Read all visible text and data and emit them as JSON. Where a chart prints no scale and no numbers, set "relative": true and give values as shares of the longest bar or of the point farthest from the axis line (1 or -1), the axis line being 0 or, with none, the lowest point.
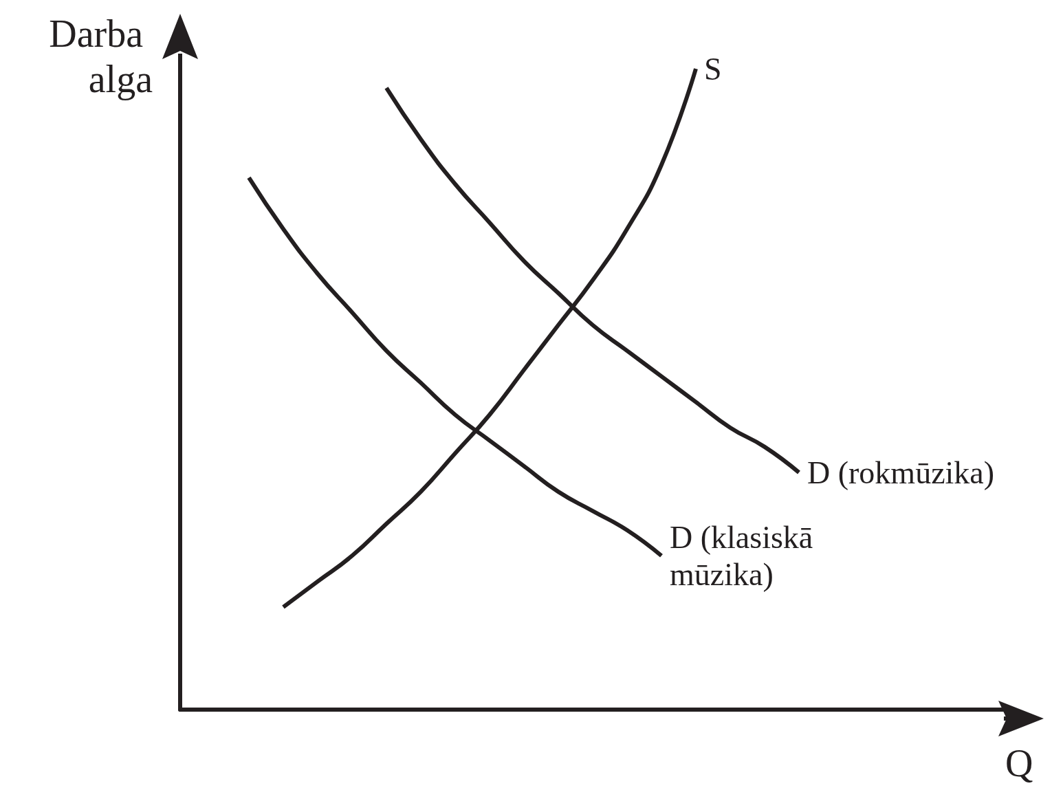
{
  "chart_data": {
    "type": "line",
    "relative": true,
    "xlabel": "Q",
    "ylabel": "Darba alga",
    "marker": "none",
    "line_style": "solid",
    "grid": false,
    "legend": false,
    "tick_labels": false,
    "categories": [
      null,
      null,
      null,
      null,
      null,
      null,
      null,
      null,
      null,
      null,
      null,
      null,
      null,
      null,
      null,
      null,
      null,
      null,
      null,
      null,
      null,
      null,
      null,
      null,
      null
    ],
    "series": [
      {
        "name": "S",
        "color": "#231f20",
        "values": [
          null,
          null,
          null,
          0.16,
          0.2,
          0.24,
          0.29,
          0.34,
          0.4,
          0.46,
          0.53,
          0.6,
          0.67,
          0.75,
          0.85,
          1.0,
          null,
          null,
          null,
          null,
          null,
          null,
          null,
          null,
          null
        ]
      },
      {
        "name": "D (rokmūzika)",
        "color": "#231f20",
        "values": [
          null,
          null,
          null,
          null,
          null,
          null,
          0.97,
          0.89,
          0.82,
          0.76,
          0.7,
          0.65,
          0.6,
          0.56,
          0.52,
          0.48,
          0.44,
          0.41,
          0.37,
          null,
          null,
          null,
          null,
          null,
          null
        ]
      },
      {
        "name": "D (klasiskā mūzika)",
        "color": "#231f20",
        "values": [
          null,
          null,
          0.83,
          0.75,
          0.68,
          0.62,
          0.56,
          0.51,
          0.46,
          0.42,
          0.38,
          0.34,
          0.31,
          0.28,
          0.24,
          null,
          null,
          null,
          null,
          null,
          null,
          null,
          null,
          null,
          null
        ]
      }
    ]
  }
}
